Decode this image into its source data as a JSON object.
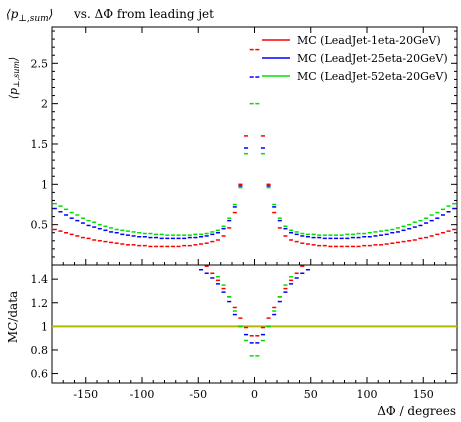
{
  "title_text": "vs. ΔΦ from leading jet",
  "colors": {
    "red": "#ff0000",
    "blue": "#0000ff",
    "green": "#00e000",
    "ratio_line": "#b5b800"
  },
  "chart_data": [
    {
      "type": "line",
      "title": "⟨p⊥,sum⟩ vs. ΔΦ from leading jet",
      "ylabel": "⟨p⊥,sum⟩",
      "xlabel": "",
      "xlim": [
        -180,
        180
      ],
      "ylim": [
        0,
        2.95
      ],
      "x": [
        -177.5,
        -172.5,
        -167.5,
        -162.5,
        -157.5,
        -152.5,
        -147.5,
        -142.5,
        -137.5,
        -132.5,
        -127.5,
        -122.5,
        -117.5,
        -112.5,
        -107.5,
        -102.5,
        -97.5,
        -92.5,
        -87.5,
        -82.5,
        -77.5,
        -72.5,
        -67.5,
        -62.5,
        -57.5,
        -52.5,
        -47.5,
        -42.5,
        -37.5,
        -32.5,
        -27.5,
        -22.5,
        -17.5,
        -12.5,
        -7.5,
        -2.5,
        2.5,
        7.5,
        12.5,
        17.5,
        22.5,
        27.5,
        32.5,
        37.5,
        42.5,
        47.5,
        52.5,
        57.5,
        62.5,
        67.5,
        72.5,
        77.5,
        82.5,
        87.5,
        92.5,
        97.5,
        102.5,
        107.5,
        112.5,
        117.5,
        122.5,
        127.5,
        132.5,
        137.5,
        142.5,
        147.5,
        152.5,
        157.5,
        162.5,
        167.5,
        172.5,
        177.5
      ],
      "xticks": [
        "-150",
        "-100",
        "-50",
        "0",
        "50",
        "100",
        "150"
      ],
      "yticks": [
        "0.5",
        "1",
        "1.5",
        "2",
        "2.5"
      ],
      "legend_position": "top-right",
      "series": [
        {
          "name": "MC (LeadJet-1eta-20GeV)",
          "color": "#ff0000",
          "values": [
            0.44,
            0.42,
            0.4,
            0.38,
            0.36,
            0.34,
            0.33,
            0.31,
            0.3,
            0.29,
            0.28,
            0.27,
            0.26,
            0.25,
            0.25,
            0.24,
            0.24,
            0.23,
            0.23,
            0.23,
            0.23,
            0.23,
            0.23,
            0.24,
            0.24,
            0.25,
            0.26,
            0.27,
            0.29,
            0.31,
            0.36,
            0.46,
            0.65,
            1.0,
            1.6,
            2.67,
            2.67,
            1.6,
            1.0,
            0.65,
            0.46,
            0.36,
            0.31,
            0.29,
            0.27,
            0.26,
            0.25,
            0.24,
            0.24,
            0.23,
            0.23,
            0.23,
            0.23,
            0.23,
            0.23,
            0.24,
            0.24,
            0.25,
            0.25,
            0.26,
            0.27,
            0.28,
            0.29,
            0.3,
            0.31,
            0.33,
            0.34,
            0.36,
            0.38,
            0.4,
            0.42,
            0.44
          ]
        },
        {
          "name": "MC (LeadJet-25eta-20GeV)",
          "color": "#0000ff",
          "values": [
            0.7,
            0.66,
            0.62,
            0.58,
            0.55,
            0.52,
            0.49,
            0.47,
            0.45,
            0.43,
            0.41,
            0.4,
            0.38,
            0.37,
            0.36,
            0.35,
            0.35,
            0.34,
            0.34,
            0.33,
            0.33,
            0.33,
            0.33,
            0.33,
            0.34,
            0.34,
            0.35,
            0.36,
            0.38,
            0.4,
            0.45,
            0.55,
            0.72,
            0.98,
            1.45,
            2.33,
            2.33,
            1.45,
            0.98,
            0.72,
            0.55,
            0.45,
            0.4,
            0.38,
            0.36,
            0.35,
            0.34,
            0.34,
            0.33,
            0.33,
            0.33,
            0.33,
            0.33,
            0.34,
            0.34,
            0.35,
            0.35,
            0.36,
            0.37,
            0.38,
            0.4,
            0.41,
            0.43,
            0.45,
            0.47,
            0.49,
            0.52,
            0.55,
            0.58,
            0.62,
            0.66,
            0.7
          ]
        },
        {
          "name": "MC (LeadJet-52eta-20GeV)",
          "color": "#00e000",
          "values": [
            0.76,
            0.73,
            0.69,
            0.65,
            0.62,
            0.58,
            0.55,
            0.53,
            0.5,
            0.48,
            0.46,
            0.44,
            0.43,
            0.42,
            0.41,
            0.4,
            0.39,
            0.39,
            0.38,
            0.38,
            0.37,
            0.37,
            0.37,
            0.37,
            0.37,
            0.38,
            0.38,
            0.39,
            0.41,
            0.43,
            0.48,
            0.58,
            0.75,
            0.96,
            1.38,
            2.0,
            2.0,
            1.38,
            0.96,
            0.75,
            0.58,
            0.48,
            0.43,
            0.41,
            0.39,
            0.38,
            0.38,
            0.37,
            0.37,
            0.37,
            0.37,
            0.37,
            0.38,
            0.38,
            0.39,
            0.39,
            0.4,
            0.41,
            0.42,
            0.43,
            0.44,
            0.46,
            0.48,
            0.5,
            0.53,
            0.55,
            0.58,
            0.62,
            0.65,
            0.69,
            0.73,
            0.76
          ]
        }
      ]
    },
    {
      "type": "line",
      "title": "",
      "ylabel": "MC/data",
      "xlabel": "ΔΦ / degrees",
      "xlim": [
        -180,
        180
      ],
      "ylim": [
        0.52,
        1.52
      ],
      "reference_line": 1.0,
      "yticks": [
        "0.6",
        "0.8",
        "1",
        "1.2",
        "1.4"
      ],
      "xticks": [
        "-150",
        "-100",
        "-50",
        "0",
        "50",
        "100",
        "150"
      ],
      "series": [
        {
          "name": "MC (LeadJet-1eta-20GeV)",
          "color": "#ff0000",
          "points": [
            [
              -42.5,
              1.51
            ],
            [
              -37.5,
              1.45
            ],
            [
              -32.5,
              1.39
            ],
            [
              -27.5,
              1.32
            ],
            [
              -22.5,
              1.25
            ],
            [
              -17.5,
              1.16
            ],
            [
              -12.5,
              1.07
            ],
            [
              -7.5,
              0.99
            ],
            [
              -2.5,
              0.92
            ],
            [
              2.5,
              0.92
            ],
            [
              7.5,
              0.99
            ],
            [
              12.5,
              1.07
            ],
            [
              17.5,
              1.16
            ],
            [
              22.5,
              1.25
            ],
            [
              27.5,
              1.32
            ],
            [
              32.5,
              1.39
            ],
            [
              37.5,
              1.45
            ],
            [
              42.5,
              1.51
            ]
          ]
        },
        {
          "name": "MC (LeadJet-25eta-20GeV)",
          "color": "#0000ff",
          "points": [
            [
              -47.5,
              1.48
            ],
            [
              -42.5,
              1.45
            ],
            [
              -37.5,
              1.41
            ],
            [
              -32.5,
              1.36
            ],
            [
              -27.5,
              1.29
            ],
            [
              -22.5,
              1.21
            ],
            [
              -17.5,
              1.1
            ],
            [
              -12.5,
              1.0
            ],
            [
              -7.5,
              0.93
            ],
            [
              -2.5,
              0.86
            ],
            [
              2.5,
              0.86
            ],
            [
              7.5,
              0.93
            ],
            [
              12.5,
              1.0
            ],
            [
              17.5,
              1.1
            ],
            [
              22.5,
              1.21
            ],
            [
              27.5,
              1.29
            ],
            [
              32.5,
              1.36
            ],
            [
              37.5,
              1.41
            ],
            [
              42.5,
              1.45
            ],
            [
              47.5,
              1.48
            ]
          ]
        },
        {
          "name": "MC (LeadJet-52eta-20GeV)",
          "color": "#00e000",
          "points": [
            [
              -32.5,
              1.42
            ],
            [
              -27.5,
              1.35
            ],
            [
              -22.5,
              1.25
            ],
            [
              -17.5,
              1.13
            ],
            [
              -12.5,
              1.0
            ],
            [
              -7.5,
              0.88
            ],
            [
              -2.5,
              0.75
            ],
            [
              2.5,
              0.75
            ],
            [
              7.5,
              0.88
            ],
            [
              12.5,
              1.0
            ],
            [
              17.5,
              1.13
            ],
            [
              22.5,
              1.25
            ],
            [
              27.5,
              1.35
            ],
            [
              32.5,
              1.42
            ]
          ]
        }
      ]
    }
  ]
}
